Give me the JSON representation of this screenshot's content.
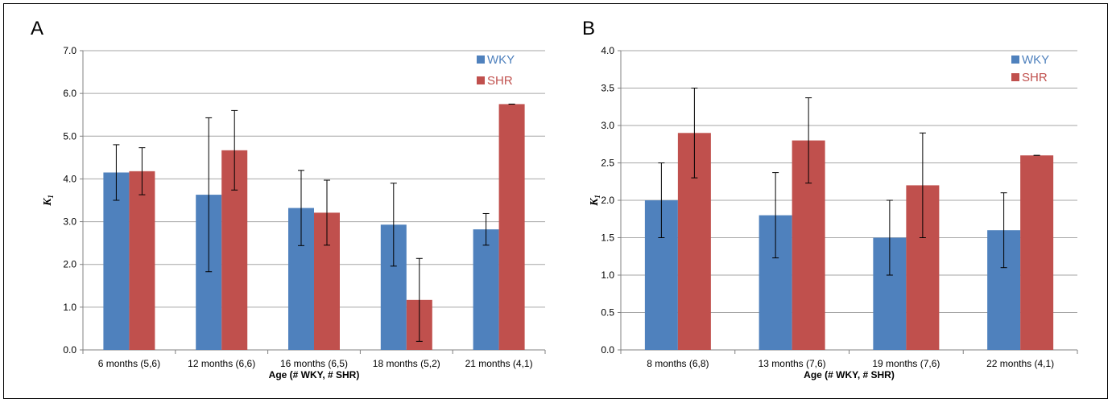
{
  "colors": {
    "wky": "#4f81bd",
    "shr": "#c0504d",
    "grid": "#a6a6a6",
    "axis": "#808080"
  },
  "chart_data": [
    {
      "panel_label": "A",
      "type": "bar",
      "ylabel": "K1",
      "ylabel_main": "K",
      "ylabel_sub": "1",
      "xlabel": "Age (# WKY, # SHR)",
      "ylim": [
        0,
        7
      ],
      "y_ticks": [
        "0.0",
        "1.0",
        "2.0",
        "3.0",
        "4.0",
        "5.0",
        "6.0",
        "7.0"
      ],
      "grid": true,
      "legend_position": "top-right",
      "categories": [
        "6 months (5,6)",
        "12 months (6,6)",
        "16 months (6,5)",
        "18 months (5,2)",
        "21 months (4,1)"
      ],
      "series": [
        {
          "name": "WKY",
          "color": "#4f81bd",
          "values": [
            4.15,
            3.63,
            3.32,
            2.93,
            2.82
          ],
          "errors": [
            0.65,
            1.8,
            0.88,
            0.97,
            0.37
          ]
        },
        {
          "name": "SHR",
          "color": "#c0504d",
          "values": [
            4.18,
            4.67,
            3.21,
            1.17,
            5.75
          ],
          "errors": [
            0.55,
            0.93,
            0.76,
            0.97,
            0.0
          ]
        }
      ]
    },
    {
      "panel_label": "B",
      "type": "bar",
      "ylabel": "K1",
      "ylabel_main": "K",
      "ylabel_sub": "1",
      "xlabel": "Age (# WKY, # SHR)",
      "ylim": [
        0,
        4
      ],
      "y_ticks": [
        "0.0",
        "0.5",
        "1.0",
        "1.5",
        "2.0",
        "2.5",
        "3.0",
        "3.5",
        "4.0"
      ],
      "grid": true,
      "legend_position": "top-right",
      "categories": [
        "8 months (6,8)",
        "13 months (7,6)",
        "19 months (7,6)",
        "22 months (4,1)"
      ],
      "series": [
        {
          "name": "WKY",
          "color": "#4f81bd",
          "values": [
            2.0,
            1.8,
            1.5,
            1.6
          ],
          "errors": [
            0.5,
            0.57,
            0.5,
            0.5
          ]
        },
        {
          "name": "SHR",
          "color": "#c0504d",
          "values": [
            2.9,
            2.8,
            2.2,
            2.6
          ],
          "errors": [
            0.6,
            0.57,
            0.7,
            0.0
          ]
        }
      ]
    }
  ]
}
